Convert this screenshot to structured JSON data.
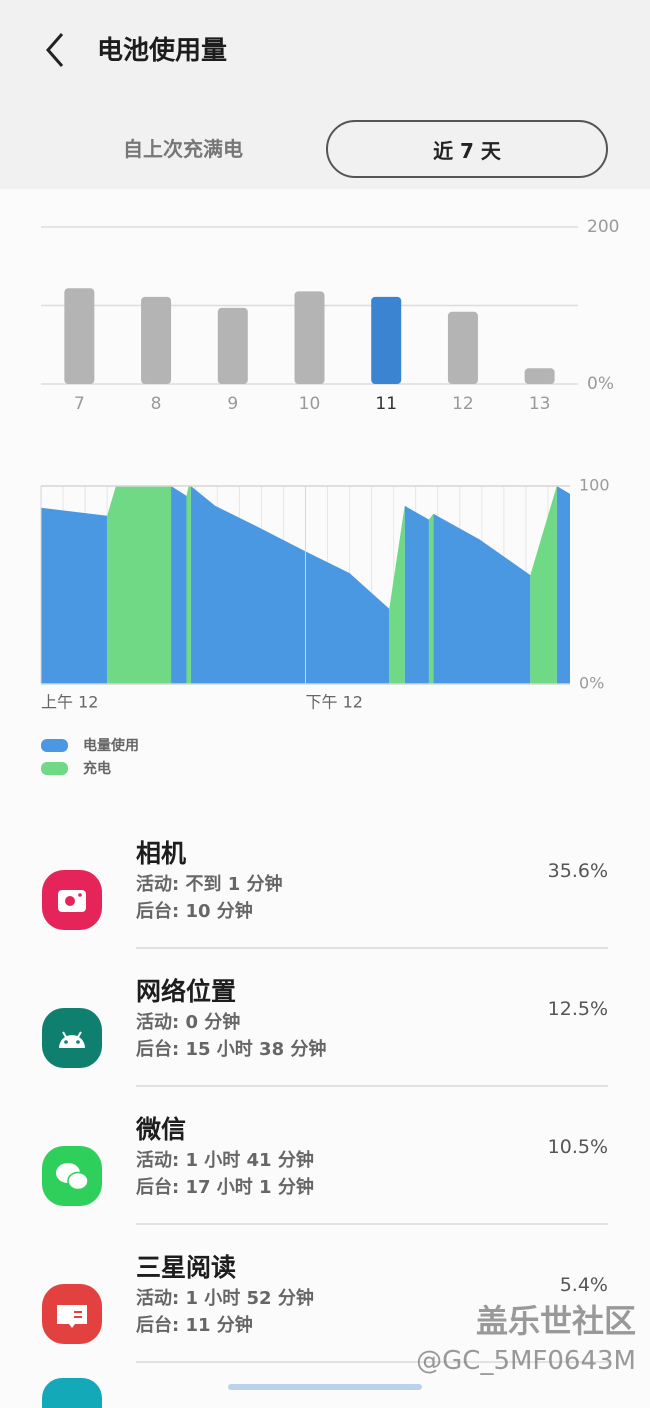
{
  "header": {
    "title": "电池使用量"
  },
  "tabs": {
    "items": [
      "自上次充满电",
      "近 7 天"
    ],
    "selected": 1
  },
  "chart_data": [
    {
      "type": "bar",
      "categories": [
        "7",
        "8",
        "9",
        "10",
        "11",
        "12",
        "13"
      ],
      "values": [
        122,
        111,
        97,
        118,
        111,
        92,
        20
      ],
      "colors": [
        "#b4b4b4",
        "#b4b4b4",
        "#b4b4b4",
        "#b4b4b4",
        "#3a84d2",
        "#b4b4b4",
        "#b4b4b4"
      ],
      "ylim": [
        0,
        200
      ],
      "yticks": [
        {
          "value": 0,
          "label": "0%"
        },
        {
          "value": 100,
          "label": null
        },
        200
      ],
      "grid": true
    },
    {
      "type": "area",
      "xlim": [
        0,
        24
      ],
      "ylim": [
        0,
        100
      ],
      "xticks": [
        {
          "value": 0,
          "label": "上午 12"
        },
        {
          "value": 12,
          "label": "下午 12"
        }
      ],
      "yticks": [
        {
          "value": 0,
          "label": "0%"
        },
        100
      ],
      "grid": true,
      "series": [
        {
          "name": "电量使用",
          "color": "#4a98e2",
          "x": [
            0,
            3.0,
            3.05,
            5.9,
            6.6,
            6.65,
            6.8,
            7.9,
            9.9,
            12,
            14,
            15.8,
            16.1,
            16.5,
            17.6,
            17.65,
            17.8,
            19.9,
            22.2,
            22.5,
            23.4,
            24
          ],
          "values": [
            89,
            85,
            null,
            100,
            95,
            null,
            100,
            90,
            79,
            67,
            56,
            38,
            null,
            90,
            83,
            null,
            86,
            73,
            55,
            null,
            100,
            96
          ]
        },
        {
          "name": "充电",
          "color": "#6fd985",
          "x": [
            3.0,
            3.4,
            5.9,
            6.2,
            6.6,
            6.7,
            6.8,
            11,
            15.8,
            16.5,
            17,
            17.6,
            17.8,
            20,
            22.2,
            23.4
          ],
          "values": [
            85,
            100,
            100,
            null,
            95,
            100,
            100,
            null,
            38,
            90,
            null,
            83,
            86,
            null,
            55,
            100
          ]
        }
      ]
    }
  ],
  "apps": [
    {
      "name": "相机",
      "active": "活动: 不到 1 分钟",
      "background": "后台: 10 分钟",
      "percent": "35.6%",
      "color": "#e5245a"
    },
    {
      "name": "网络位置",
      "active": "活动: 0 分钟",
      "background": "后台: 15 小时 38 分钟",
      "percent": "12.5%",
      "color": "#0f7f70"
    },
    {
      "name": "微信",
      "active": "活动: 1 小时 41 分钟",
      "background": "后台: 17 小时 1 分钟",
      "percent": "10.5%",
      "color": "#2fcf5b"
    },
    {
      "name": "三星阅读",
      "active": "活动: 1 小时 52 分钟",
      "background": "后台: 11 分钟",
      "percent": "5.4%",
      "color": "#e2413f"
    }
  ],
  "watermark": {
    "brand": "盖乐世社区",
    "user": "@GC_5MF0643M"
  }
}
